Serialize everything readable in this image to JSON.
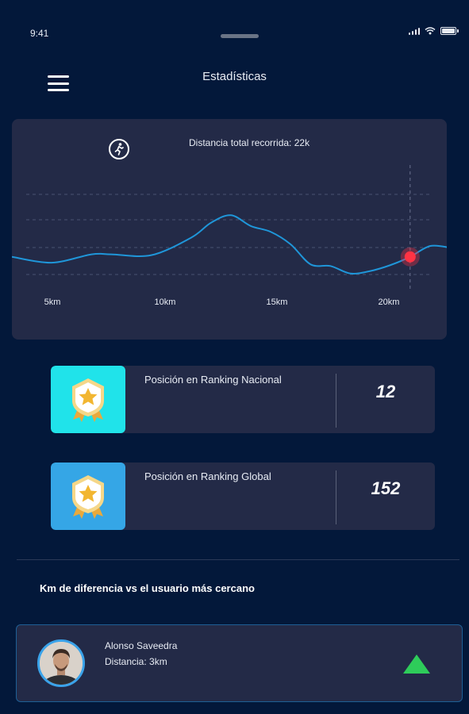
{
  "status_bar": {
    "time": "9:41"
  },
  "header": {
    "title": "Estadísticas",
    "menu_icon": "hamburger-menu-icon"
  },
  "chart_data": {
    "type": "line",
    "title": "Distancia total recorrida: 22k",
    "icon": "running-person-icon",
    "x_tick_labels": [
      "5km",
      "10km",
      "15km",
      "20km"
    ],
    "x": [
      0,
      2,
      4,
      5,
      7,
      9,
      10,
      11,
      12,
      13,
      14,
      15,
      16,
      17,
      18,
      19,
      20,
      21,
      22
    ],
    "values": [
      0.25,
      0.18,
      0.28,
      0.28,
      0.27,
      0.48,
      0.66,
      0.75,
      0.62,
      0.55,
      0.4,
      0.16,
      0.14,
      0.05,
      0.08,
      0.15,
      0.25,
      0.38,
      0.36
    ],
    "highlight_x": 20,
    "highlight_value": 0.25,
    "line_color": "#1f96d9",
    "highlight_color": "#ff3344",
    "grid": "horizontal-dashed"
  },
  "rankings": [
    {
      "label": "Posición en Ranking Nacional",
      "value": "12",
      "badge_color": "#20e3ea",
      "icon": "star-badge-icon"
    },
    {
      "label": "Posición en Ranking Global",
      "value": "152",
      "badge_color": "#35a6e6",
      "icon": "star-badge-icon"
    }
  ],
  "section": {
    "title": "Km de diferencia vs el usuario más cercano"
  },
  "nearest_user": {
    "name": "Alonso Saveedra",
    "distance": "Distancia: 3km",
    "trend_icon": "arrow-up-icon",
    "trend_color": "#2ecc5a"
  }
}
